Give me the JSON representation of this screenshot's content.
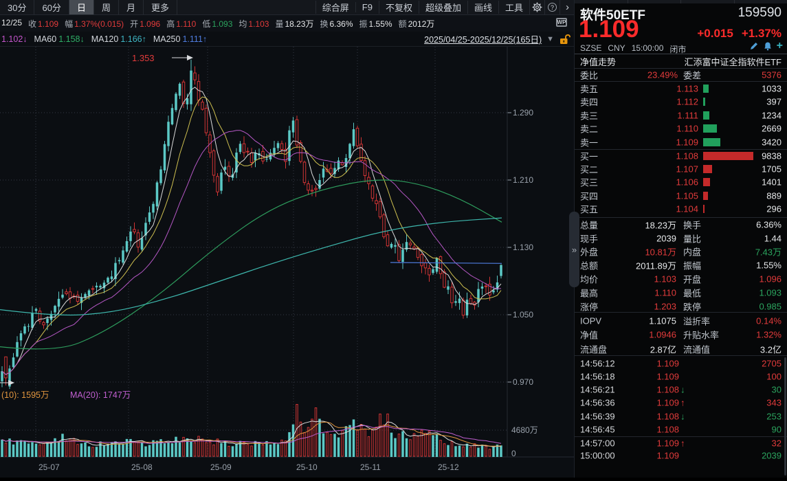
{
  "colors": {
    "red": "#e23b3b",
    "green": "#2ba45e",
    "white": "#e6e8ea",
    "bright_red": "#fb2b2b",
    "up_candle": "#5cc9c6",
    "down_candle": "#d23434",
    "ma5": "#dcdcdc",
    "ma10": "#cfc050",
    "ma20": "#b658c6",
    "ma60": "#2e9e5e",
    "ma120": "#3eb8ae",
    "ma250": "#4f7de0",
    "vol_ma10": "#e0953e",
    "vol_ma20": "#c05fd0",
    "axis": "#9aa2ac",
    "ask_bar": "#21a05c",
    "bid_bar": "#c42a2a",
    "accent_blue": "#4f9fd8",
    "accent_teal": "#36b2be",
    "lock_orange": "#e8960c"
  },
  "toolbar": {
    "period_tabs": [
      "30分",
      "60分",
      "日",
      "周",
      "月",
      "更多"
    ],
    "active_tab": 2,
    "menu_items": [
      "综合屏",
      "F9",
      "不复权",
      "超级叠加",
      "画线",
      "工具"
    ],
    "stats_row": [
      {
        "label": "12/25",
        "value": "",
        "c": "#e6e8ea"
      },
      {
        "label": "收",
        "value": "1.109",
        "c": "#e23b3b"
      },
      {
        "label": "幅",
        "value": "1.37%(0.015)",
        "c": "#e23b3b"
      },
      {
        "label": "开",
        "value": "1.096",
        "c": "#e23b3b"
      },
      {
        "label": "高",
        "value": "1.110",
        "c": "#e23b3b"
      },
      {
        "label": "低",
        "value": "1.093",
        "c": "#2ba45e"
      },
      {
        "label": "均",
        "value": "1.103",
        "c": "#e23b3b"
      },
      {
        "label": "量",
        "value": "18.23万",
        "c": "#e6e8ea"
      },
      {
        "label": "换",
        "value": "6.36%",
        "c": "#e6e8ea"
      },
      {
        "label": "振",
        "value": "1.55%",
        "c": "#e6e8ea"
      },
      {
        "label": "额",
        "value": "2012万",
        "c": "#e6e8ea"
      }
    ],
    "wp_badge": "WP",
    "ma_row": [
      {
        "label": "",
        "value": "1.102↓",
        "c": "#c455cc"
      },
      {
        "label": "MA60",
        "value": "1.158↓",
        "c": "#2fae66"
      },
      {
        "label": "MA120",
        "value": "1.166↑",
        "c": "#3fb6c4"
      },
      {
        "label": "MA250",
        "value": "1.111↑",
        "c": "#4f7de0"
      }
    ],
    "date_range": "2025/04/25-2025/12/25(165日)",
    "dropdown_arrow": "▼"
  },
  "chart": {
    "type": "candlestick",
    "y_axis": [
      1.29,
      1.21,
      1.13,
      1.05,
      0.97
    ],
    "x_axis": [
      "25-07",
      "25-08",
      "25-09",
      "25-10",
      "25-11",
      "25-12"
    ],
    "month_x": [
      52,
      187,
      302,
      427,
      520,
      633
    ],
    "high_annotation": "1.353",
    "vol_axis_max_label": "4680万",
    "vol_axis_zero": "0",
    "vol_ma_labels": [
      {
        "text": "(10): 1595万",
        "c": "#e0953e"
      },
      {
        "text": "MA(20): 1747万",
        "c": "#c05fd0"
      }
    ],
    "close_keypoints": [
      [
        0,
        1.0
      ],
      [
        8,
        0.966
      ],
      [
        16,
        0.99
      ],
      [
        26,
        1.022
      ],
      [
        40,
        1.036
      ],
      [
        52,
        1.058
      ],
      [
        62,
        1.04
      ],
      [
        76,
        1.05
      ],
      [
        90,
        1.078
      ],
      [
        104,
        1.066
      ],
      [
        118,
        1.072
      ],
      [
        132,
        1.078
      ],
      [
        146,
        1.086
      ],
      [
        160,
        1.098
      ],
      [
        172,
        1.11
      ],
      [
        184,
        1.132
      ],
      [
        194,
        1.152
      ],
      [
        202,
        1.132
      ],
      [
        212,
        1.16
      ],
      [
        222,
        1.178
      ],
      [
        232,
        1.216
      ],
      [
        242,
        1.266
      ],
      [
        252,
        1.3
      ],
      [
        262,
        1.322
      ],
      [
        270,
        1.295
      ],
      [
        280,
        1.345
      ],
      [
        288,
        1.312
      ],
      [
        296,
        1.285
      ],
      [
        306,
        1.243
      ],
      [
        316,
        1.192
      ],
      [
        326,
        1.232
      ],
      [
        336,
        1.212
      ],
      [
        346,
        1.252
      ],
      [
        356,
        1.242
      ],
      [
        366,
        1.236
      ],
      [
        376,
        1.246
      ],
      [
        386,
        1.23
      ],
      [
        396,
        1.242
      ],
      [
        406,
        1.256
      ],
      [
        416,
        1.236
      ],
      [
        425,
        1.288
      ],
      [
        433,
        1.242
      ],
      [
        441,
        1.216
      ],
      [
        450,
        1.196
      ],
      [
        460,
        1.202
      ],
      [
        470,
        1.222
      ],
      [
        480,
        1.214
      ],
      [
        490,
        1.232
      ],
      [
        500,
        1.222
      ],
      [
        510,
        1.256
      ],
      [
        517,
        1.27
      ],
      [
        525,
        1.232
      ],
      [
        533,
        1.212
      ],
      [
        541,
        1.196
      ],
      [
        550,
        1.172
      ],
      [
        558,
        1.142
      ],
      [
        566,
        1.126
      ],
      [
        574,
        1.132
      ],
      [
        582,
        1.116
      ],
      [
        590,
        1.142
      ],
      [
        600,
        1.126
      ],
      [
        610,
        1.116
      ],
      [
        618,
        1.11
      ],
      [
        628,
        1.096
      ],
      [
        635,
        1.114
      ],
      [
        643,
        1.092
      ],
      [
        651,
        1.082
      ],
      [
        659,
        1.062
      ],
      [
        666,
        1.076
      ],
      [
        673,
        1.052
      ],
      [
        681,
        1.07
      ],
      [
        689,
        1.061
      ],
      [
        696,
        1.076
      ],
      [
        703,
        1.081
      ],
      [
        711,
        1.076
      ],
      [
        719,
        1.081
      ],
      [
        725,
        1.086
      ],
      [
        730,
        1.109
      ]
    ],
    "vol_keypoints": [
      [
        0,
        2400
      ],
      [
        30,
        2800
      ],
      [
        60,
        2200
      ],
      [
        90,
        3400
      ],
      [
        120,
        2100
      ],
      [
        150,
        2300
      ],
      [
        180,
        2600
      ],
      [
        210,
        2400
      ],
      [
        240,
        3000
      ],
      [
        270,
        3100
      ],
      [
        300,
        2900
      ],
      [
        330,
        2300
      ],
      [
        360,
        2600
      ],
      [
        390,
        2300
      ],
      [
        418,
        3200
      ],
      [
        430,
        8200
      ],
      [
        442,
        5000
      ],
      [
        458,
        7800
      ],
      [
        470,
        3600
      ],
      [
        490,
        3200
      ],
      [
        508,
        7000
      ],
      [
        520,
        5400
      ],
      [
        535,
        4700
      ],
      [
        545,
        4300
      ],
      [
        558,
        7400
      ],
      [
        575,
        4000
      ],
      [
        590,
        3500
      ],
      [
        605,
        3300
      ],
      [
        620,
        4600
      ],
      [
        635,
        3700
      ],
      [
        650,
        2500
      ],
      [
        665,
        2300
      ],
      [
        680,
        2100
      ],
      [
        695,
        1900
      ],
      [
        710,
        1700
      ],
      [
        727,
        2100
      ]
    ],
    "ma60_keypoints": [
      [
        0,
        1.012
      ],
      [
        80,
        1.005
      ],
      [
        150,
        1.028
      ],
      [
        230,
        1.072
      ],
      [
        310,
        1.128
      ],
      [
        390,
        1.175
      ],
      [
        470,
        1.2
      ],
      [
        550,
        1.212
      ],
      [
        610,
        1.206
      ],
      [
        670,
        1.188
      ],
      [
        730,
        1.16
      ]
    ],
    "ma120_keypoints": [
      [
        0,
        1.056
      ],
      [
        80,
        1.048
      ],
      [
        160,
        1.052
      ],
      [
        240,
        1.068
      ],
      [
        320,
        1.09
      ],
      [
        400,
        1.112
      ],
      [
        480,
        1.132
      ],
      [
        560,
        1.15
      ],
      [
        640,
        1.16
      ],
      [
        730,
        1.165
      ]
    ],
    "ma250_keypoints": [
      [
        568,
        1.112
      ],
      [
        730,
        1.111
      ]
    ],
    "last_day": {
      "open": 1.096,
      "close": 1.109,
      "high": 1.11,
      "low": 1.093,
      "volume": 2012
    }
  },
  "panel": {
    "name": "软件50ETF",
    "code": "159590",
    "price": "1.109",
    "change": "+0.015",
    "change_pct": "+1.37%",
    "exchange": "SZSE",
    "currency": "CNY",
    "time": "15:00:00",
    "market_status": "闭市",
    "nav_label": "净值走势",
    "nav_name": "汇添富中证全指软件ETF",
    "weibi_label": "委比",
    "weibi_value": "23.49%",
    "weicha_label": "委差",
    "weicha_value": "5376",
    "asks": [
      [
        "卖五",
        "1.113",
        1033
      ],
      [
        "卖四",
        "1.112",
        397
      ],
      [
        "卖三",
        "1.111",
        1234
      ],
      [
        "卖二",
        "1.110",
        2669
      ],
      [
        "卖一",
        "1.109",
        3420
      ]
    ],
    "bids": [
      [
        "买一",
        "1.108",
        9838
      ],
      [
        "买二",
        "1.107",
        1705
      ],
      [
        "买三",
        "1.106",
        1401
      ],
      [
        "买四",
        "1.105",
        889
      ],
      [
        "买五",
        "1.104",
        296
      ]
    ],
    "max_depth": 9838,
    "stats": [
      [
        "总量",
        "18.23万",
        "w",
        "换手",
        "6.36%",
        "w"
      ],
      [
        "现手",
        "2039",
        "w",
        "量比",
        "1.44",
        "w"
      ],
      [
        "外盘",
        "10.81万",
        "r",
        "内盘",
        "7.43万",
        "g"
      ],
      [
        "总额",
        "2011.89万",
        "w",
        "振幅",
        "1.55%",
        "w"
      ],
      [
        "均价",
        "1.103",
        "r",
        "开盘",
        "1.096",
        "r"
      ],
      [
        "最高",
        "1.110",
        "r",
        "最低",
        "1.093",
        "g"
      ],
      [
        "涨停",
        "1.203",
        "r",
        "跌停",
        "0.985",
        "g"
      ]
    ],
    "iopv": [
      [
        "IOPV",
        "1.1075",
        "w",
        "溢折率",
        "0.14%",
        "r"
      ],
      [
        "净值",
        "1.0946",
        "r",
        "升贴水率",
        "1.32%",
        "r"
      ],
      [
        "流通盘",
        "2.87亿",
        "w",
        "流通值",
        "3.2亿",
        "w"
      ]
    ],
    "ticks": [
      [
        "14:56:12",
        "1.109",
        "",
        "2705",
        "r"
      ],
      [
        "14:56:18",
        "1.109",
        "",
        "100",
        "r"
      ],
      [
        "14:56:21",
        "1.108",
        "d",
        "30",
        "g"
      ],
      [
        "14:56:36",
        "1.109",
        "u",
        "343",
        "r"
      ],
      [
        "14:56:39",
        "1.108",
        "d",
        "253",
        "g"
      ],
      [
        "14:56:45",
        "1.108",
        "",
        "90",
        "g"
      ],
      [
        "14:57:00",
        "1.109",
        "u",
        "32",
        "r"
      ],
      [
        "15:00:00",
        "1.109",
        "",
        "2039",
        "g"
      ]
    ],
    "tick_sep_index": 6
  }
}
